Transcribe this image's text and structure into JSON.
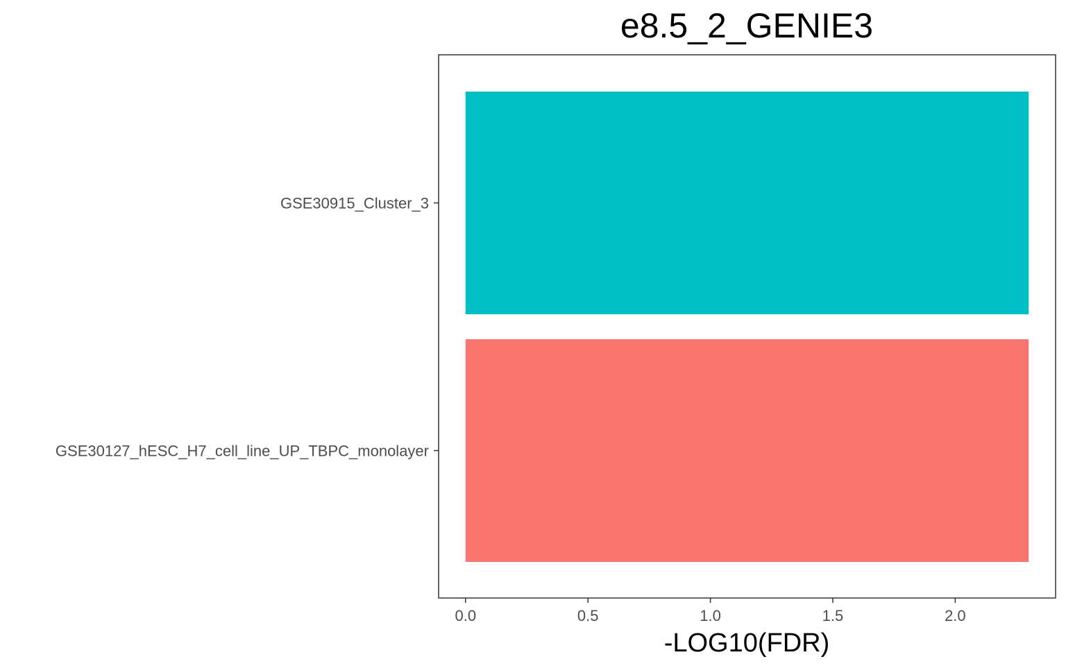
{
  "chart_data": {
    "type": "bar",
    "orientation": "horizontal",
    "title": "e8.5_2_GENIE3",
    "xlabel": "-LOG10(FDR)",
    "ylabel": "",
    "categories": [
      "GSE30127_hESC_H7_cell_line_UP_TBPC_monolayer",
      "GSE30915_Cluster_3"
    ],
    "values": [
      2.3,
      2.3
    ],
    "colors": [
      "#F8766D",
      "#00BFC4"
    ],
    "xlim": [
      -0.11,
      2.41
    ],
    "xticks": [
      0.0,
      0.5,
      1.0,
      1.5,
      2.0
    ],
    "xtick_labels": [
      "0.0",
      "0.5",
      "1.0",
      "1.5",
      "2.0"
    ],
    "grid": false,
    "legend": "none"
  }
}
